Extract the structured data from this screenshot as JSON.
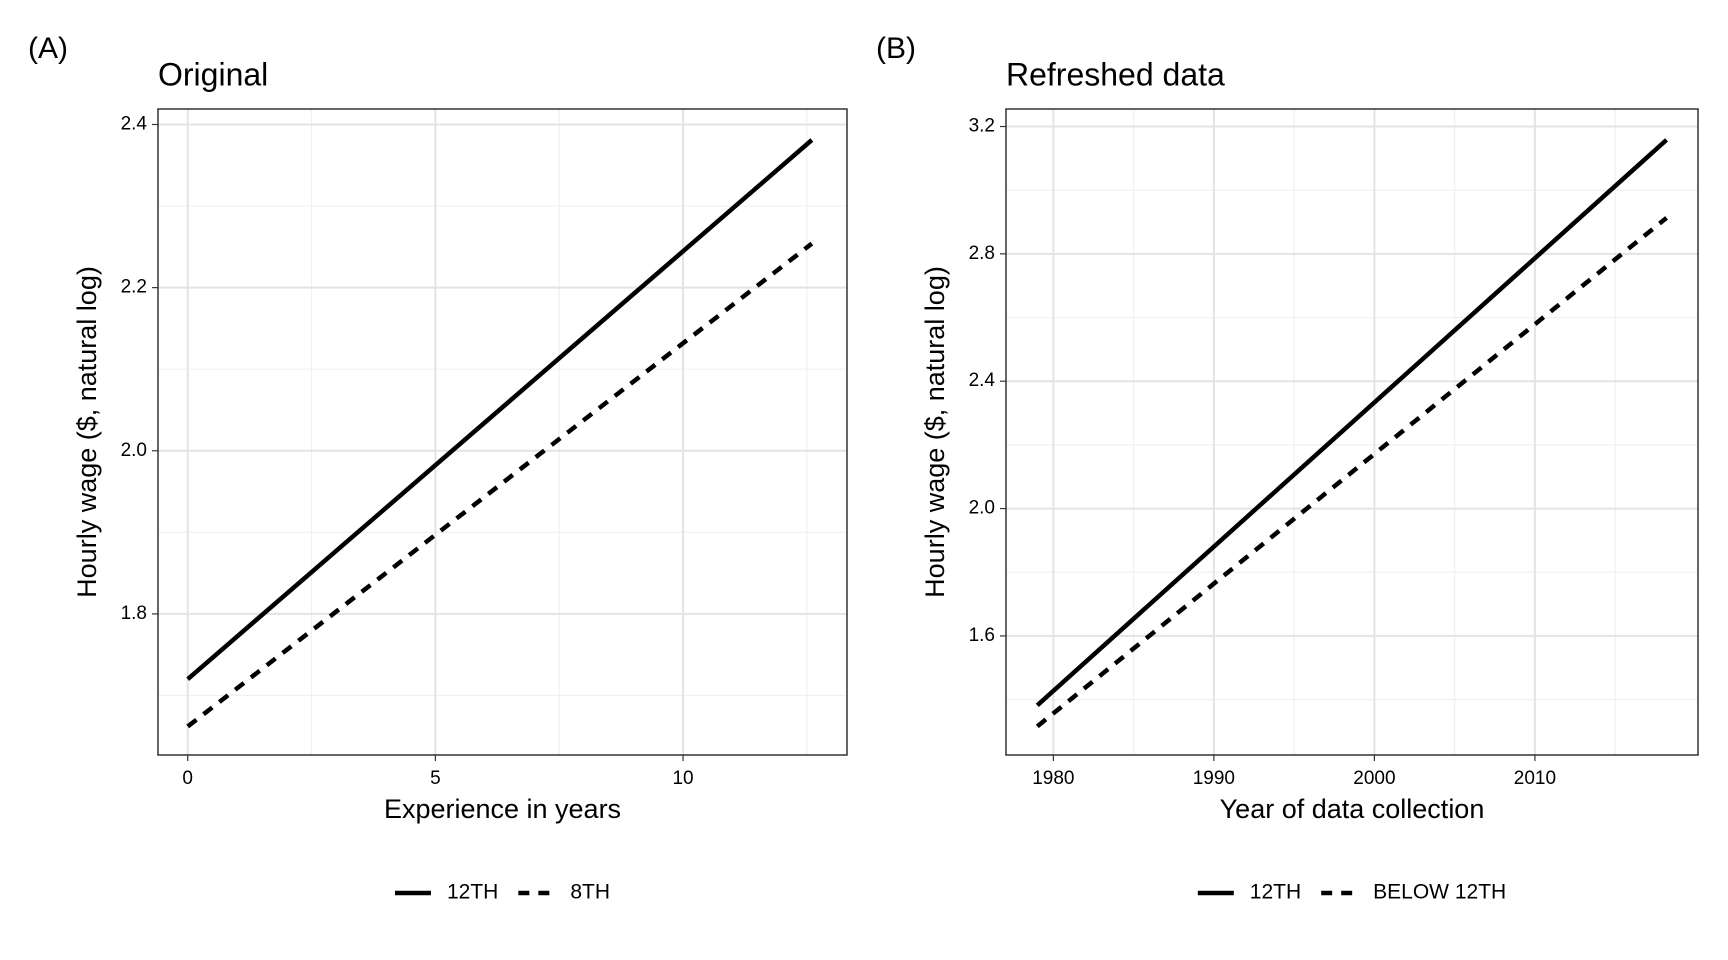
{
  "chart_data": [
    {
      "type": "line",
      "panel_label": "(A)",
      "title": "Original",
      "x_label": "Experience in years",
      "y_label": "Hourly wage ($, natural log)",
      "x": [
        0,
        12.6
      ],
      "series": [
        {
          "name": "12TH",
          "color": "#000000",
          "dash": "solid",
          "values": [
            1.72,
            2.381
          ]
        },
        {
          "name": "8TH",
          "color": "#000000",
          "dash": "dashed",
          "values": [
            1.662,
            2.254
          ]
        }
      ],
      "xlim": [
        -0.6,
        13.31
      ],
      "xticks": [
        0,
        5,
        10
      ],
      "ylim": [
        1.627,
        2.419
      ],
      "yticks": [
        1.8,
        {
          "value": 2,
          "label": "2.0"
        },
        2.2,
        2.4
      ],
      "grid": true,
      "minor_grid": true,
      "legend": "bottom"
    },
    {
      "type": "line",
      "panel_label": "(B)",
      "title": "Refreshed data",
      "x_label": "Year of data collection",
      "y_label": "Hourly wage ($, natural log)",
      "x": [
        1979,
        2018.2
      ],
      "series": [
        {
          "name": "12TH",
          "color": "#000000",
          "dash": "solid",
          "values": [
            1.382,
            3.158
          ]
        },
        {
          "name": "BELOW 12TH",
          "color": "#000000",
          "dash": "dashed",
          "values": [
            1.316,
            2.913
          ]
        }
      ],
      "xlim": [
        1977.05,
        2020.16
      ],
      "xticks": [
        1980,
        1990,
        2000,
        2010
      ],
      "ylim": [
        1.226,
        3.255
      ],
      "yticks": [
        1.6,
        {
          "value": 2,
          "label": "2.0"
        },
        2.4,
        2.8,
        3.2
      ],
      "grid": true,
      "minor_grid": true,
      "legend": "bottom"
    }
  ]
}
